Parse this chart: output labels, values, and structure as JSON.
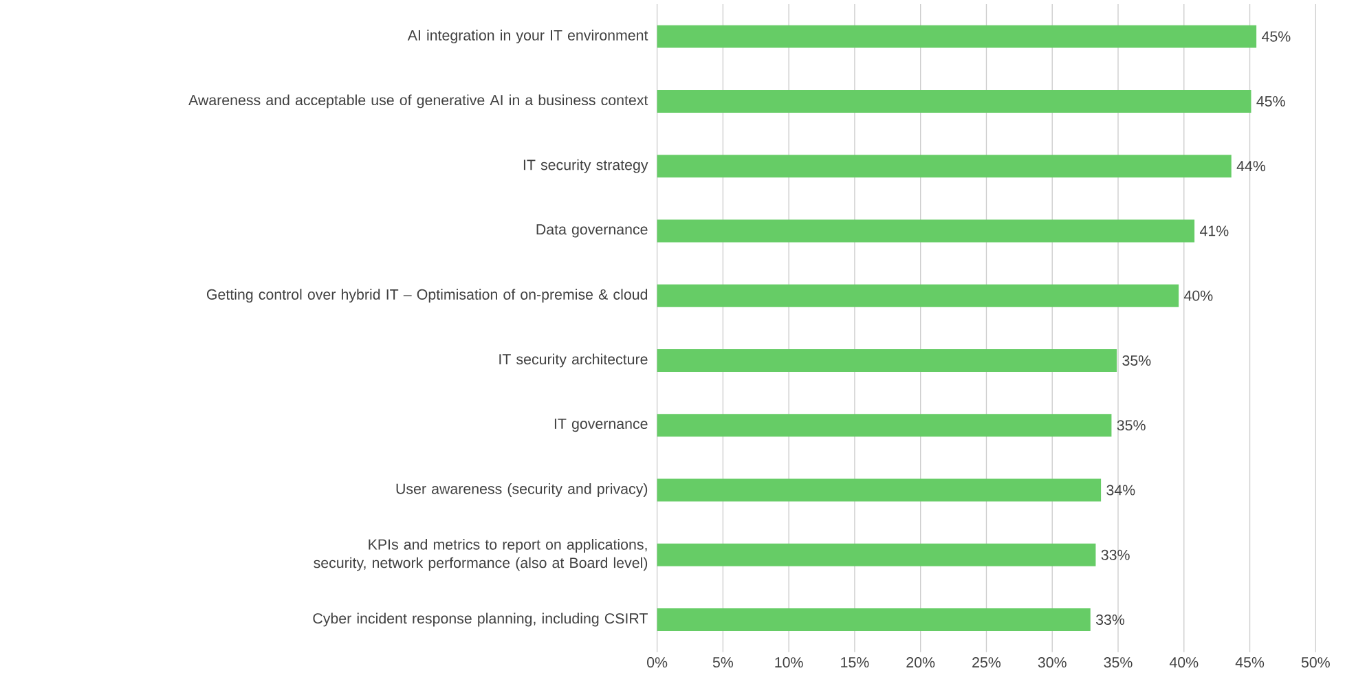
{
  "chart_data": {
    "type": "bar",
    "orientation": "horizontal",
    "categories": [
      "AI integration in your IT environment",
      "Awareness and acceptable use of generative AI in a business context",
      "IT security strategy",
      "Data governance",
      "Getting control over hybrid IT – Optimisation of on-premise & cloud",
      "IT security architecture",
      "IT governance",
      "User awareness (security and privacy)",
      "KPIs and metrics to report on applications, security, network performance (also at Board level)",
      "Cyber incident response planning, including CSIRT"
    ],
    "values": [
      45.5,
      45.1,
      43.6,
      40.8,
      39.6,
      34.9,
      34.5,
      33.7,
      33.3,
      32.9
    ],
    "value_labels": [
      "45%",
      "45%",
      "44%",
      "41%",
      "40%",
      "35%",
      "35%",
      "34%",
      "33%",
      "33%"
    ],
    "color": "#66cc66",
    "xlim": [
      0,
      50
    ],
    "xticks": [
      {
        "value": 0,
        "label": "0%"
      },
      {
        "value": 5,
        "label": "5%"
      },
      {
        "value": 10,
        "label": "10%"
      },
      {
        "value": 15,
        "label": "15%"
      },
      {
        "value": 20,
        "label": "20%"
      },
      {
        "value": 25,
        "label": "25%"
      },
      {
        "value": 30,
        "label": "30%"
      },
      {
        "value": 35,
        "label": "35%"
      },
      {
        "value": 40,
        "label": "40%"
      },
      {
        "value": 45,
        "label": "45%"
      },
      {
        "value": 50,
        "label": "50%"
      }
    ],
    "grid": "x"
  }
}
